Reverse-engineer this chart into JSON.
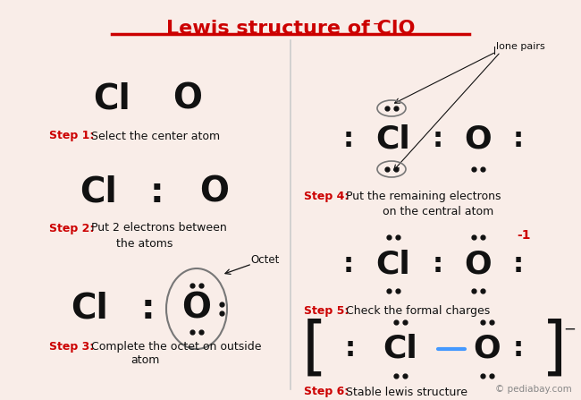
{
  "bg_color": "#F9EDE8",
  "red": "#CC0000",
  "dark": "#111111",
  "blue": "#4499FF",
  "gray": "#888888",
  "title": "Lewis structure of ClO",
  "watermark": "© pediabay.com",
  "step1_label": "Step 1:",
  "step1_text": "Select the center atom",
  "step2_label": "Step 2:",
  "step2_text_1": "Put 2 electrons between",
  "step2_text_2": "the atoms",
  "step3_label": "Step 3:",
  "step3_text_1": "Complete the octet on outside",
  "step3_text_2": "atom",
  "step4_label": "Step 4:",
  "step4_text_1": "Put the remaining electrons",
  "step4_text_2": "on the central atom",
  "step5_label": "Step 5:",
  "step5_text": "Check the formal charges",
  "step6_label": "Step 6:",
  "step6_text": "Stable lewis structure"
}
